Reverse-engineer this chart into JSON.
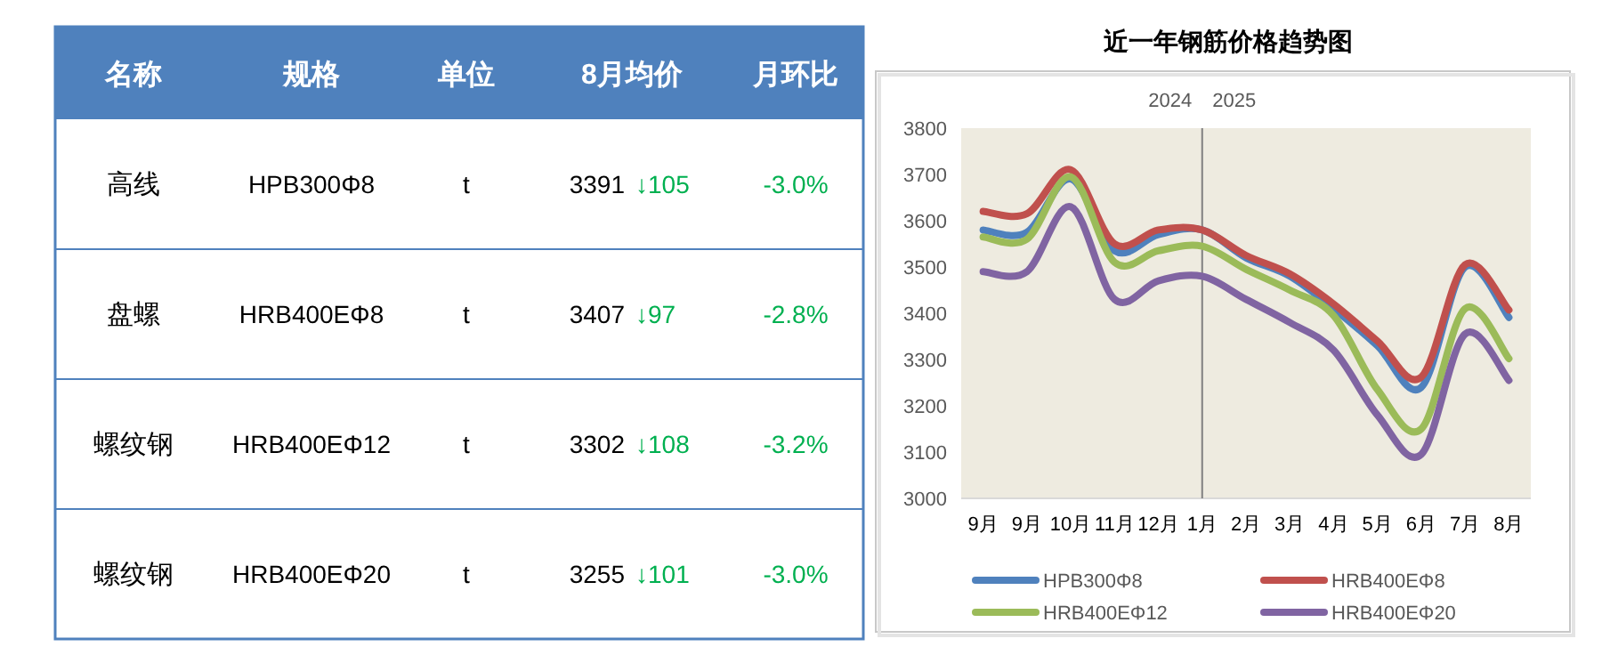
{
  "chart_data": [
    {
      "type": "other",
      "categories": [
        "名称",
        "规格",
        "单位",
        "8月均价",
        "月环比"
      ],
      "cell_labels": [
        [
          "高线",
          "HPB300Φ8",
          "t",
          "3391 ↓105",
          "-3.0%"
        ],
        [
          "盘螺",
          "HRB400EΦ8",
          "t",
          "3407 ↓97",
          "-2.8%"
        ],
        [
          "螺纹钢",
          "HRB400EΦ12",
          "t",
          "3302 ↓108",
          "-3.2%"
        ],
        [
          "螺纹钢",
          "HRB400EΦ20",
          "t",
          "3255 ↓101",
          "-3.0%"
        ]
      ]
    },
    {
      "type": "line",
      "title": "近一年钢筋价格趋势图",
      "categories": [
        "9月",
        "9月",
        "10月",
        "11月",
        "12月",
        "1月",
        "2月",
        "3月",
        "4月",
        "5月",
        "6月",
        "7月",
        "8月"
      ],
      "series": [
        {
          "name": "HPB300Φ8",
          "color": "#4f81bd",
          "values": [
            3580,
            3575,
            3690,
            3535,
            3570,
            3580,
            3520,
            3480,
            3410,
            3330,
            3240,
            3500,
            3391
          ]
        },
        {
          "name": "HRB400EΦ8",
          "color": "#c0504d",
          "values": [
            3620,
            3615,
            3710,
            3550,
            3580,
            3580,
            3525,
            3485,
            3420,
            3340,
            3262,
            3505,
            3407
          ]
        },
        {
          "name": "HRB400EΦ12",
          "color": "#9bbb59",
          "values": [
            3565,
            3560,
            3695,
            3510,
            3535,
            3545,
            3495,
            3450,
            3395,
            3235,
            3150,
            3410,
            3302
          ]
        },
        {
          "name": "HRB400EΦ20",
          "color": "#8064a2",
          "values": [
            3490,
            3490,
            3630,
            3430,
            3470,
            3480,
            3430,
            3380,
            3320,
            3180,
            3095,
            3355,
            3255
          ]
        }
      ],
      "ylim": [
        3000,
        3800
      ],
      "yticks": [
        3000,
        3100,
        3200,
        3300,
        3400,
        3500,
        3600,
        3700,
        3800
      ],
      "ref_lines": [
        {
          "axis": "x",
          "value": "1月",
          "color": "#808080"
        }
      ],
      "annotations": [
        "2024",
        "2025"
      ],
      "grid": false,
      "legend": "bottom",
      "marker": "none",
      "line_style": "solid"
    }
  ]
}
